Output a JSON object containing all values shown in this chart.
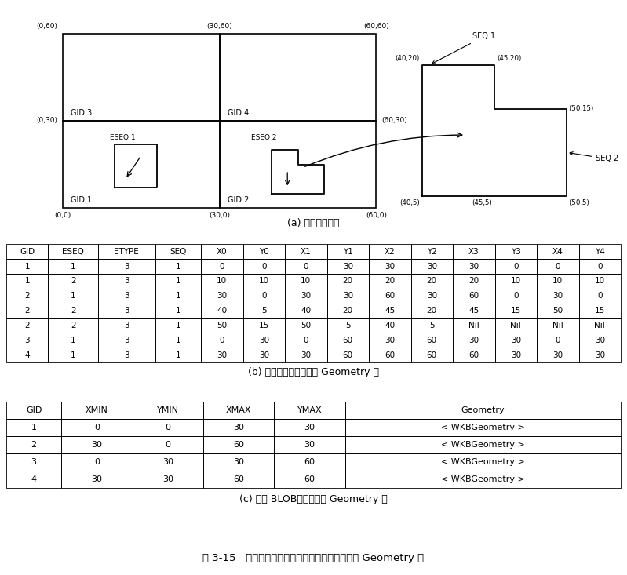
{
  "bg_color": "#ffffff",
  "table_b_headers": [
    "GID",
    "ESEQ",
    "ETYPE",
    "SEQ",
    "X0",
    "Y0",
    "X1",
    "Y1",
    "X2",
    "Y2",
    "X3",
    "Y3",
    "X4",
    "Y4"
  ],
  "table_b_rows": [
    [
      "1",
      "1",
      "3",
      "1",
      "0",
      "0",
      "0",
      "30",
      "30",
      "30",
      "30",
      "0",
      "0",
      "0"
    ],
    [
      "1",
      "2",
      "3",
      "1",
      "10",
      "10",
      "10",
      "20",
      "20",
      "20",
      "20",
      "10",
      "10",
      "10"
    ],
    [
      "2",
      "1",
      "3",
      "1",
      "30",
      "0",
      "30",
      "30",
      "60",
      "30",
      "60",
      "0",
      "30",
      "0"
    ],
    [
      "2",
      "2",
      "3",
      "1",
      "40",
      "5",
      "40",
      "20",
      "45",
      "20",
      "45",
      "15",
      "50",
      "15"
    ],
    [
      "2",
      "2",
      "3",
      "1",
      "50",
      "15",
      "50",
      "5",
      "40",
      "5",
      "Nil",
      "Nil",
      "Nil",
      "Nil"
    ],
    [
      "3",
      "1",
      "3",
      "1",
      "0",
      "30",
      "0",
      "60",
      "30",
      "60",
      "30",
      "30",
      "0",
      "30"
    ],
    [
      "4",
      "1",
      "3",
      "1",
      "30",
      "30",
      "30",
      "60",
      "60",
      "60",
      "60",
      "30",
      "30",
      "30"
    ]
  ],
  "table_c_headers": [
    "GID",
    "XMIN",
    "YMIN",
    "XMAX",
    "YMAX",
    "Geometry"
  ],
  "table_c_rows": [
    [
      "1",
      "0",
      "0",
      "30",
      "30",
      "< WKBGeometry >"
    ],
    [
      "2",
      "30",
      "0",
      "60",
      "30",
      "< WKBGeometry >"
    ],
    [
      "3",
      "0",
      "30",
      "30",
      "60",
      "< WKBGeometry >"
    ],
    [
      "4",
      "30",
      "30",
      "60",
      "60",
      "< WKBGeometry >"
    ]
  ],
  "caption_a": "(a) 空间数据示例",
  "caption_b": "(b) 基于数字类型实现的 Geometry 表",
  "caption_c": "(c) 基于 BLOB类型实现的 Geometry 表",
  "figure_caption": "图 3-15   空间数据示例及其基于预定义数据类型的 Geometry 表"
}
